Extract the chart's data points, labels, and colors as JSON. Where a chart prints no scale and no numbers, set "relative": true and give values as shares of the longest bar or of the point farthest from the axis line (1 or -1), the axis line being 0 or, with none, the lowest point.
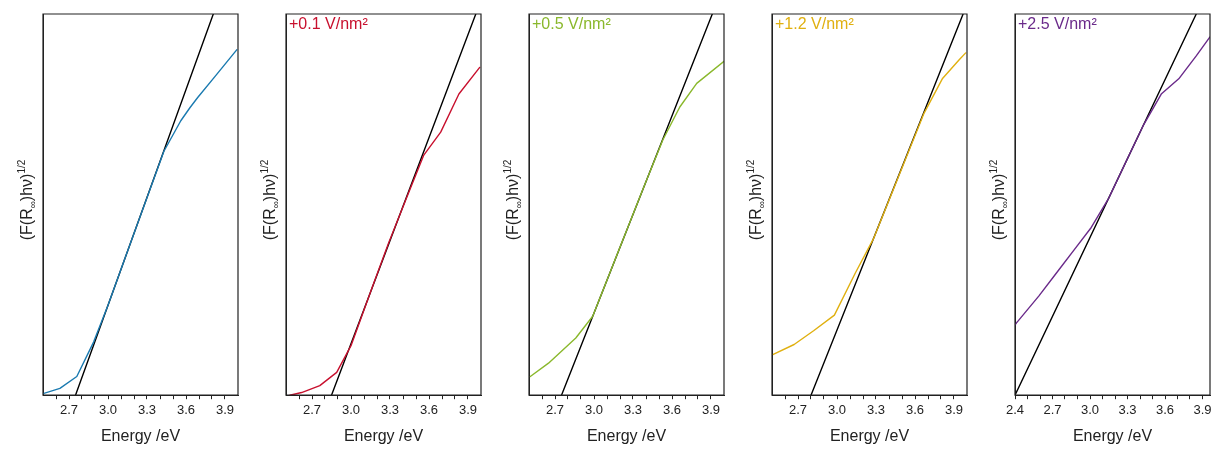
{
  "chart_data": [
    {
      "type": "line",
      "xlabel": "Energy /eV",
      "ylabel": "(F(R$_{∞}$)hν)$^{1/2}$",
      "relative": true,
      "tick_labels": "x",
      "xlim": [
        2.5,
        4.0
      ],
      "xticks": [
        {
          "value": 2.6,
          "label": null
        },
        2.7,
        {
          "value": 2.8,
          "label": null
        },
        {
          "value": 2.9,
          "label": null
        },
        {
          "value": 3,
          "label": "3.0"
        },
        {
          "value": 3.1,
          "label": null
        },
        {
          "value": 3.2,
          "label": null
        },
        3.3,
        {
          "value": 3.4,
          "label": null
        },
        {
          "value": 3.5,
          "label": null
        },
        3.6,
        {
          "value": 3.7,
          "label": null
        },
        {
          "value": 3.8,
          "label": null
        },
        3.9
      ],
      "series": [
        {
          "color": "#1a7ab0",
          "x": [
            2.5,
            2.63,
            2.76,
            2.89,
            3.0,
            3.16,
            3.29,
            3.43,
            3.56,
            3.63,
            3.69,
            3.83,
            3.99
          ],
          "values": [
            0.004,
            0.018,
            0.049,
            0.14,
            0.236,
            0.387,
            0.509,
            0.64,
            0.72,
            0.754,
            0.781,
            0.839,
            0.906
          ]
        },
        {
          "color": "#000000",
          "x": [
            2.75,
            3.81
          ],
          "values": [
            0,
            1
          ]
        }
      ]
    },
    {
      "type": "line",
      "xlabel": "Energy /eV",
      "ylabel": "(F(R$_{∞}$)hν)$^{1/2}$",
      "relative": true,
      "tick_labels": "x",
      "xlim": [
        2.5,
        4.0
      ],
      "xticks": [
        {
          "value": 2.6,
          "label": null
        },
        2.7,
        {
          "value": 2.8,
          "label": null
        },
        {
          "value": 2.9,
          "label": null
        },
        {
          "value": 3,
          "label": "3.0"
        },
        {
          "value": 3.1,
          "label": null
        },
        {
          "value": 3.2,
          "label": null
        },
        3.3,
        {
          "value": 3.4,
          "label": null
        },
        {
          "value": 3.5,
          "label": null
        },
        3.6,
        {
          "value": 3.7,
          "label": null
        },
        {
          "value": 3.8,
          "label": null
        },
        3.9
      ],
      "series": [
        {
          "name": "+0.1 V/nm²",
          "color": "#c8102e",
          "x": [
            2.53,
            2.62,
            2.76,
            2.89,
            3.0,
            3.16,
            3.29,
            3.43,
            3.56,
            3.69,
            3.83,
            3.99
          ],
          "values": [
            0,
            0.007,
            0.025,
            0.06,
            0.13,
            0.28,
            0.4,
            0.52,
            0.63,
            0.69,
            0.79,
            0.86
          ]
        },
        {
          "color": "#000000",
          "x": [
            2.85,
            3.96
          ],
          "values": [
            0,
            1
          ]
        }
      ]
    },
    {
      "type": "line",
      "xlabel": "Energy /eV",
      "ylabel": "(F(R$_{∞}$)hν)$^{1/2}$",
      "relative": true,
      "tick_labels": "x",
      "xlim": [
        2.5,
        4.0
      ],
      "xticks": [
        {
          "value": 2.6,
          "label": null
        },
        2.7,
        {
          "value": 2.8,
          "label": null
        },
        {
          "value": 2.9,
          "label": null
        },
        {
          "value": 3,
          "label": "3.0"
        },
        {
          "value": 3.1,
          "label": null
        },
        {
          "value": 3.2,
          "label": null
        },
        3.3,
        {
          "value": 3.4,
          "label": null
        },
        {
          "value": 3.5,
          "label": null
        },
        3.6,
        {
          "value": 3.7,
          "label": null
        },
        {
          "value": 3.8,
          "label": null
        },
        3.9
      ],
      "series": [
        {
          "name": "+0.5 V/nm²",
          "color": "#8ab82c",
          "x": [
            2.51,
            2.65,
            2.86,
            2.99,
            3.13,
            3.26,
            3.39,
            3.53,
            3.66,
            3.79,
            4.0
          ],
          "values": [
            0.049,
            0.084,
            0.15,
            0.207,
            0.328,
            0.44,
            0.552,
            0.67,
            0.756,
            0.818,
            0.876
          ]
        },
        {
          "color": "#000000",
          "x": [
            2.75,
            3.91
          ],
          "values": [
            0,
            1
          ]
        }
      ]
    },
    {
      "type": "line",
      "xlabel": "Energy /eV",
      "ylabel": "(F(R$_{∞}$)hν)$^{1/2}$",
      "relative": true,
      "tick_labels": "x",
      "xlim": [
        2.5,
        4.0
      ],
      "xticks": [
        {
          "value": 2.6,
          "label": null
        },
        2.7,
        {
          "value": 2.8,
          "label": null
        },
        {
          "value": 2.9,
          "label": null
        },
        {
          "value": 3,
          "label": "3.0"
        },
        {
          "value": 3.1,
          "label": null
        },
        {
          "value": 3.2,
          "label": null
        },
        3.3,
        {
          "value": 3.4,
          "label": null
        },
        {
          "value": 3.5,
          "label": null
        },
        3.6,
        {
          "value": 3.7,
          "label": null
        },
        {
          "value": 3.8,
          "label": null
        },
        3.9
      ],
      "series": [
        {
          "name": "+1.2 V/nm²",
          "color": "#e0b010",
          "x": [
            2.51,
            2.67,
            2.82,
            2.98,
            3.14,
            3.28,
            3.41,
            3.54,
            3.67,
            3.81,
            3.94,
            3.99
          ],
          "values": [
            0.107,
            0.133,
            0.169,
            0.21,
            0.32,
            0.41,
            0.52,
            0.63,
            0.74,
            0.83,
            0.88,
            0.898
          ]
        },
        {
          "color": "#000000",
          "x": [
            2.8,
            3.97
          ],
          "values": [
            0,
            1
          ]
        }
      ]
    },
    {
      "type": "line",
      "xlabel": "Energy /eV",
      "ylabel": "(F(R$_{∞}$)hν)$^{1/2}$",
      "relative": true,
      "tick_labels": "x",
      "xlim": [
        2.4,
        3.96
      ],
      "xticks": [
        2.4,
        {
          "value": 2.5,
          "label": null
        },
        {
          "value": 2.6,
          "label": null
        },
        2.7,
        {
          "value": 2.8,
          "label": null
        },
        {
          "value": 2.9,
          "label": null
        },
        {
          "value": 3,
          "label": "3.0"
        },
        {
          "value": 3.1,
          "label": null
        },
        {
          "value": 3.2,
          "label": null
        },
        3.3,
        {
          "value": 3.4,
          "label": null
        },
        {
          "value": 3.5,
          "label": null
        },
        3.6,
        {
          "value": 3.7,
          "label": null
        },
        {
          "value": 3.8,
          "label": null
        },
        3.9
      ],
      "series": [
        {
          "name": "+2.5 V/nm²",
          "color": "#6a2a8a",
          "x": [
            2.4,
            2.59,
            2.73,
            2.87,
            3.01,
            3.15,
            3.29,
            3.43,
            3.57,
            3.71,
            3.85,
            3.96
          ],
          "values": [
            0.185,
            0.26,
            0.32,
            0.38,
            0.44,
            0.517,
            0.614,
            0.71,
            0.79,
            0.83,
            0.89,
            0.94
          ]
        },
        {
          "color": "#000000",
          "x": [
            2.4,
            3.85
          ],
          "values": [
            0,
            1
          ]
        }
      ]
    }
  ]
}
